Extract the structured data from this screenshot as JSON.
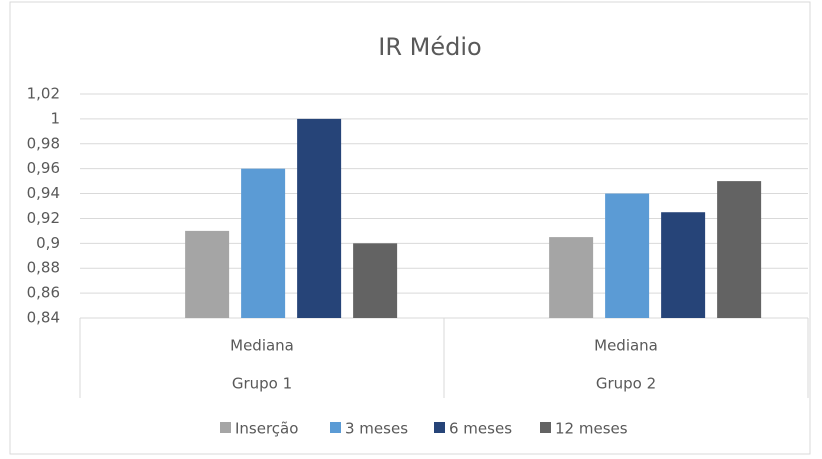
{
  "chart_data": {
    "type": "bar",
    "title": "IR Médio",
    "categories": [
      "Mediana",
      "Mediana"
    ],
    "groups": [
      "Grupo 1",
      "Grupo 2"
    ],
    "series": [
      {
        "name": "Inserção",
        "color": "#a5a5a5",
        "values": [
          0.91,
          0.905
        ]
      },
      {
        "name": "3 meses",
        "color": "#5b9bd5",
        "values": [
          0.96,
          0.94
        ]
      },
      {
        "name": "6 meses",
        "color": "#264478",
        "values": [
          1.0,
          0.925
        ]
      },
      {
        "name": "12 meses",
        "color": "#636363",
        "values": [
          0.9,
          0.95
        ]
      }
    ],
    "ylim": [
      0.84,
      1.02
    ],
    "yticks": [
      {
        "value": 0.84,
        "label": "0,84"
      },
      {
        "value": 0.86,
        "label": "0,86"
      },
      {
        "value": 0.88,
        "label": "0,88"
      },
      {
        "value": 0.9,
        "label": "0,9"
      },
      {
        "value": 0.92,
        "label": "0,92"
      },
      {
        "value": 0.94,
        "label": "0,94"
      },
      {
        "value": 0.96,
        "label": "0,96"
      },
      {
        "value": 0.98,
        "label": "0,98"
      },
      1,
      {
        "value": 1.02,
        "label": "1,02"
      }
    ],
    "grid": true,
    "legend": "bottom"
  }
}
